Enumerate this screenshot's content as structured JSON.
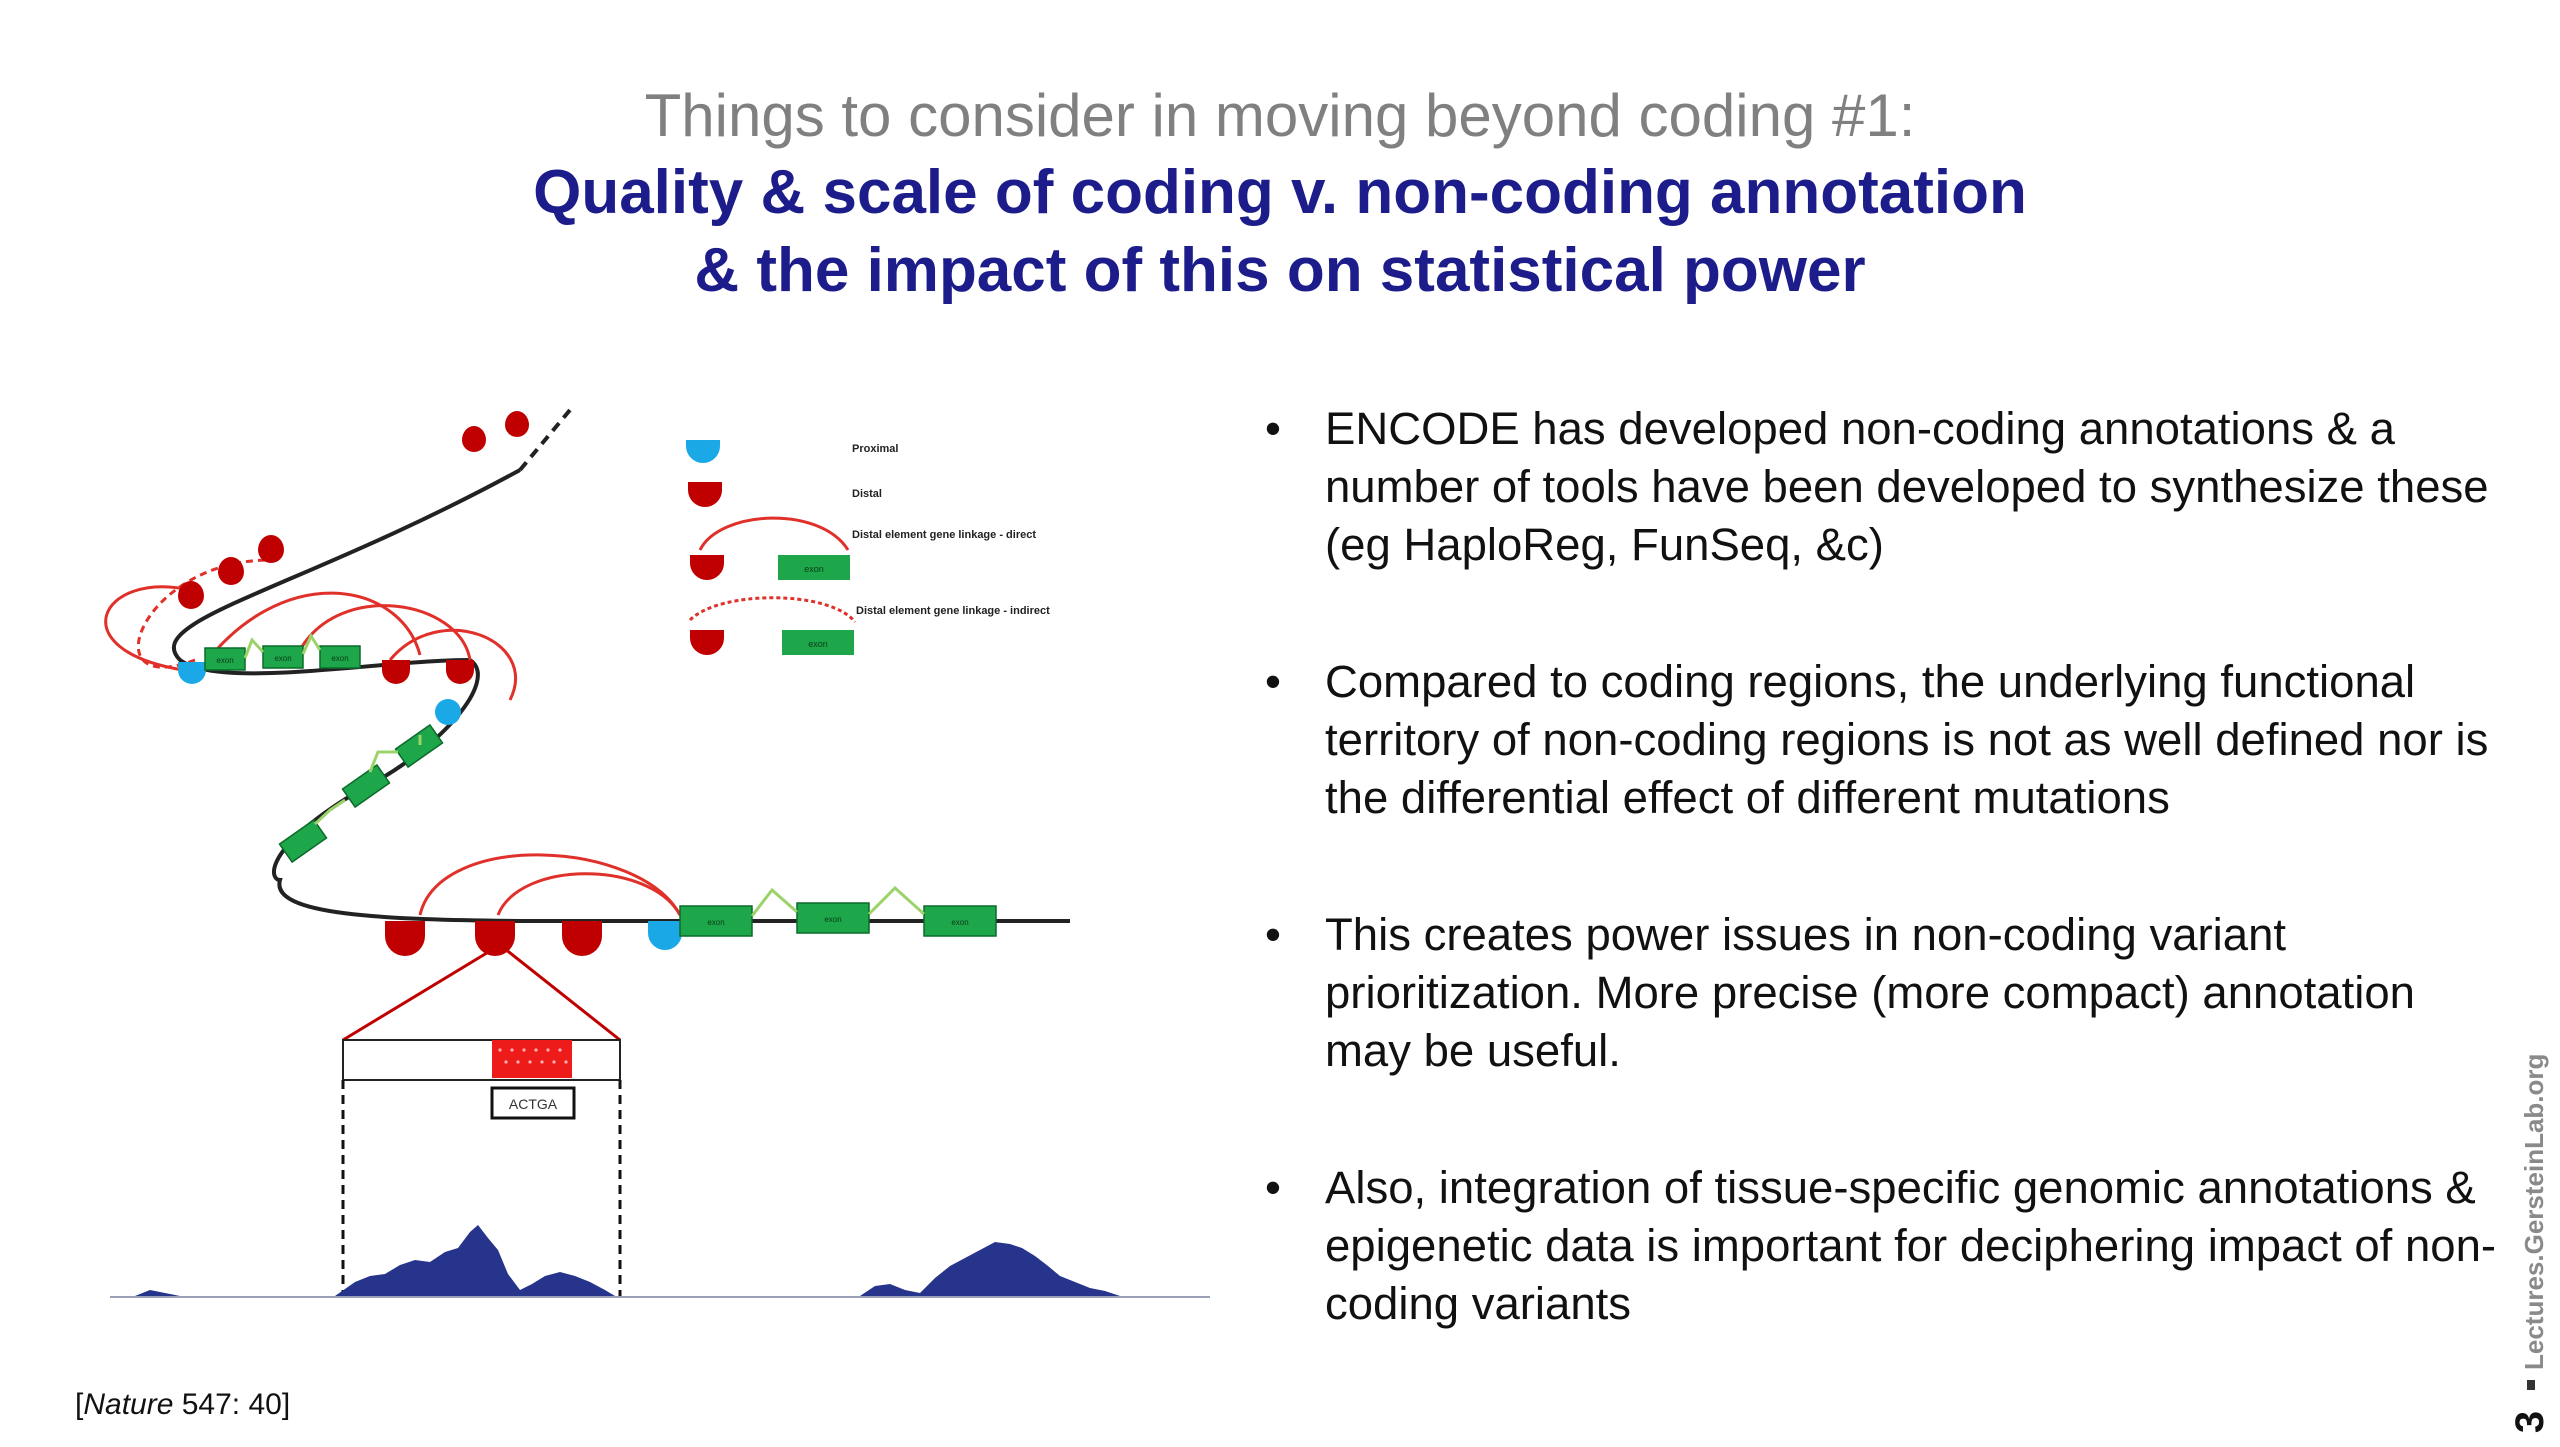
{
  "slide": {
    "title_line1": "Things to consider in moving beyond coding #1:",
    "title_line2": "Quality & scale of coding v. non-coding annotation",
    "title_line3": "& the impact of this on statistical power",
    "bullet_symbol": "•",
    "bullets": [
      "ENCODE has developed non-coding annotations & a number of tools have been developed to synthesize these (eg HaploReg, FunSeq, &c)",
      "Compared to coding regions, the underlying functional territory of non-coding regions is not as well defined nor is the differential effect of different mutations",
      "This creates power issues in non-coding variant prioritization. More precise (more compact) annotation may be useful.",
      "Also, integration of tissue-specific genomic annotations & epigenetic data is important for deciphering impact of non-coding variants"
    ],
    "citation_prefix": "[",
    "citation_journal": "Nature",
    "citation_rest": " 547: 40]",
    "sidebar_text": "Lectures.GersteinLab.org",
    "page_number": "3"
  },
  "diagram": {
    "legend": {
      "proximal": "Proximal",
      "distal": "Distal",
      "direct": "Distal element gene linkage - direct",
      "indirect": "Distal element gene linkage - indirect",
      "exon": "exon"
    },
    "exon_label": "exon",
    "sequence_label": "ACTGA",
    "colors": {
      "proximal": "#1aa8e6",
      "distal": "#c00000",
      "exon": "#1ea64a",
      "linkage": "#e0302a",
      "signal": "#27348b",
      "intron": "#9bd36a"
    }
  }
}
